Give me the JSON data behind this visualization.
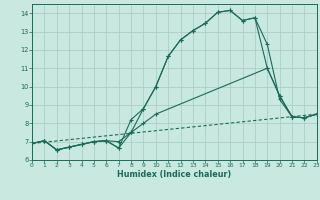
{
  "background_color": "#c8e8e0",
  "grid_color": "#a8d0c8",
  "line_color": "#1a6b5a",
  "xlim": [
    0,
    23
  ],
  "ylim": [
    6,
    14.5
  ],
  "xlabel": "Humidex (Indice chaleur)",
  "xticks": [
    0,
    1,
    2,
    3,
    4,
    5,
    6,
    7,
    8,
    9,
    10,
    11,
    12,
    13,
    14,
    15,
    16,
    17,
    18,
    19,
    20,
    21,
    22,
    23
  ],
  "yticks": [
    6,
    7,
    8,
    9,
    10,
    11,
    12,
    13,
    14
  ],
  "line1_x": [
    0,
    1,
    2,
    3,
    4,
    5,
    6,
    7,
    8,
    9,
    10,
    11,
    12,
    13,
    14,
    15,
    16,
    17,
    18,
    19,
    20,
    21,
    22,
    23
  ],
  "line1_y": [
    6.9,
    7.05,
    6.55,
    6.7,
    6.85,
    7.0,
    7.05,
    6.65,
    7.5,
    8.8,
    10.0,
    11.65,
    12.55,
    13.05,
    13.45,
    14.05,
    14.15,
    13.6,
    13.75,
    12.3,
    9.3,
    8.35,
    8.3,
    8.5
  ],
  "line2_x": [
    0,
    1,
    2,
    3,
    4,
    5,
    6,
    7,
    8,
    9,
    10,
    11,
    12,
    13,
    14,
    15,
    16,
    17,
    18,
    19,
    20,
    21,
    22,
    23
  ],
  "line2_y": [
    6.9,
    7.05,
    6.55,
    6.7,
    6.85,
    7.0,
    7.05,
    6.65,
    8.2,
    8.8,
    10.0,
    11.65,
    12.55,
    13.05,
    13.45,
    14.05,
    14.15,
    13.6,
    13.75,
    11.0,
    9.5,
    8.35,
    8.3,
    8.5
  ],
  "line3_x": [
    0,
    1,
    2,
    3,
    4,
    5,
    6,
    7,
    8,
    9,
    10,
    19,
    20,
    21,
    22,
    23
  ],
  "line3_y": [
    6.9,
    7.05,
    6.55,
    6.7,
    6.85,
    7.0,
    7.05,
    7.0,
    7.5,
    8.0,
    8.5,
    11.0,
    9.5,
    8.35,
    8.3,
    8.5
  ],
  "line4_x": [
    0,
    23
  ],
  "line4_y": [
    6.9,
    8.5
  ],
  "line4_dash": [
    3,
    2
  ]
}
